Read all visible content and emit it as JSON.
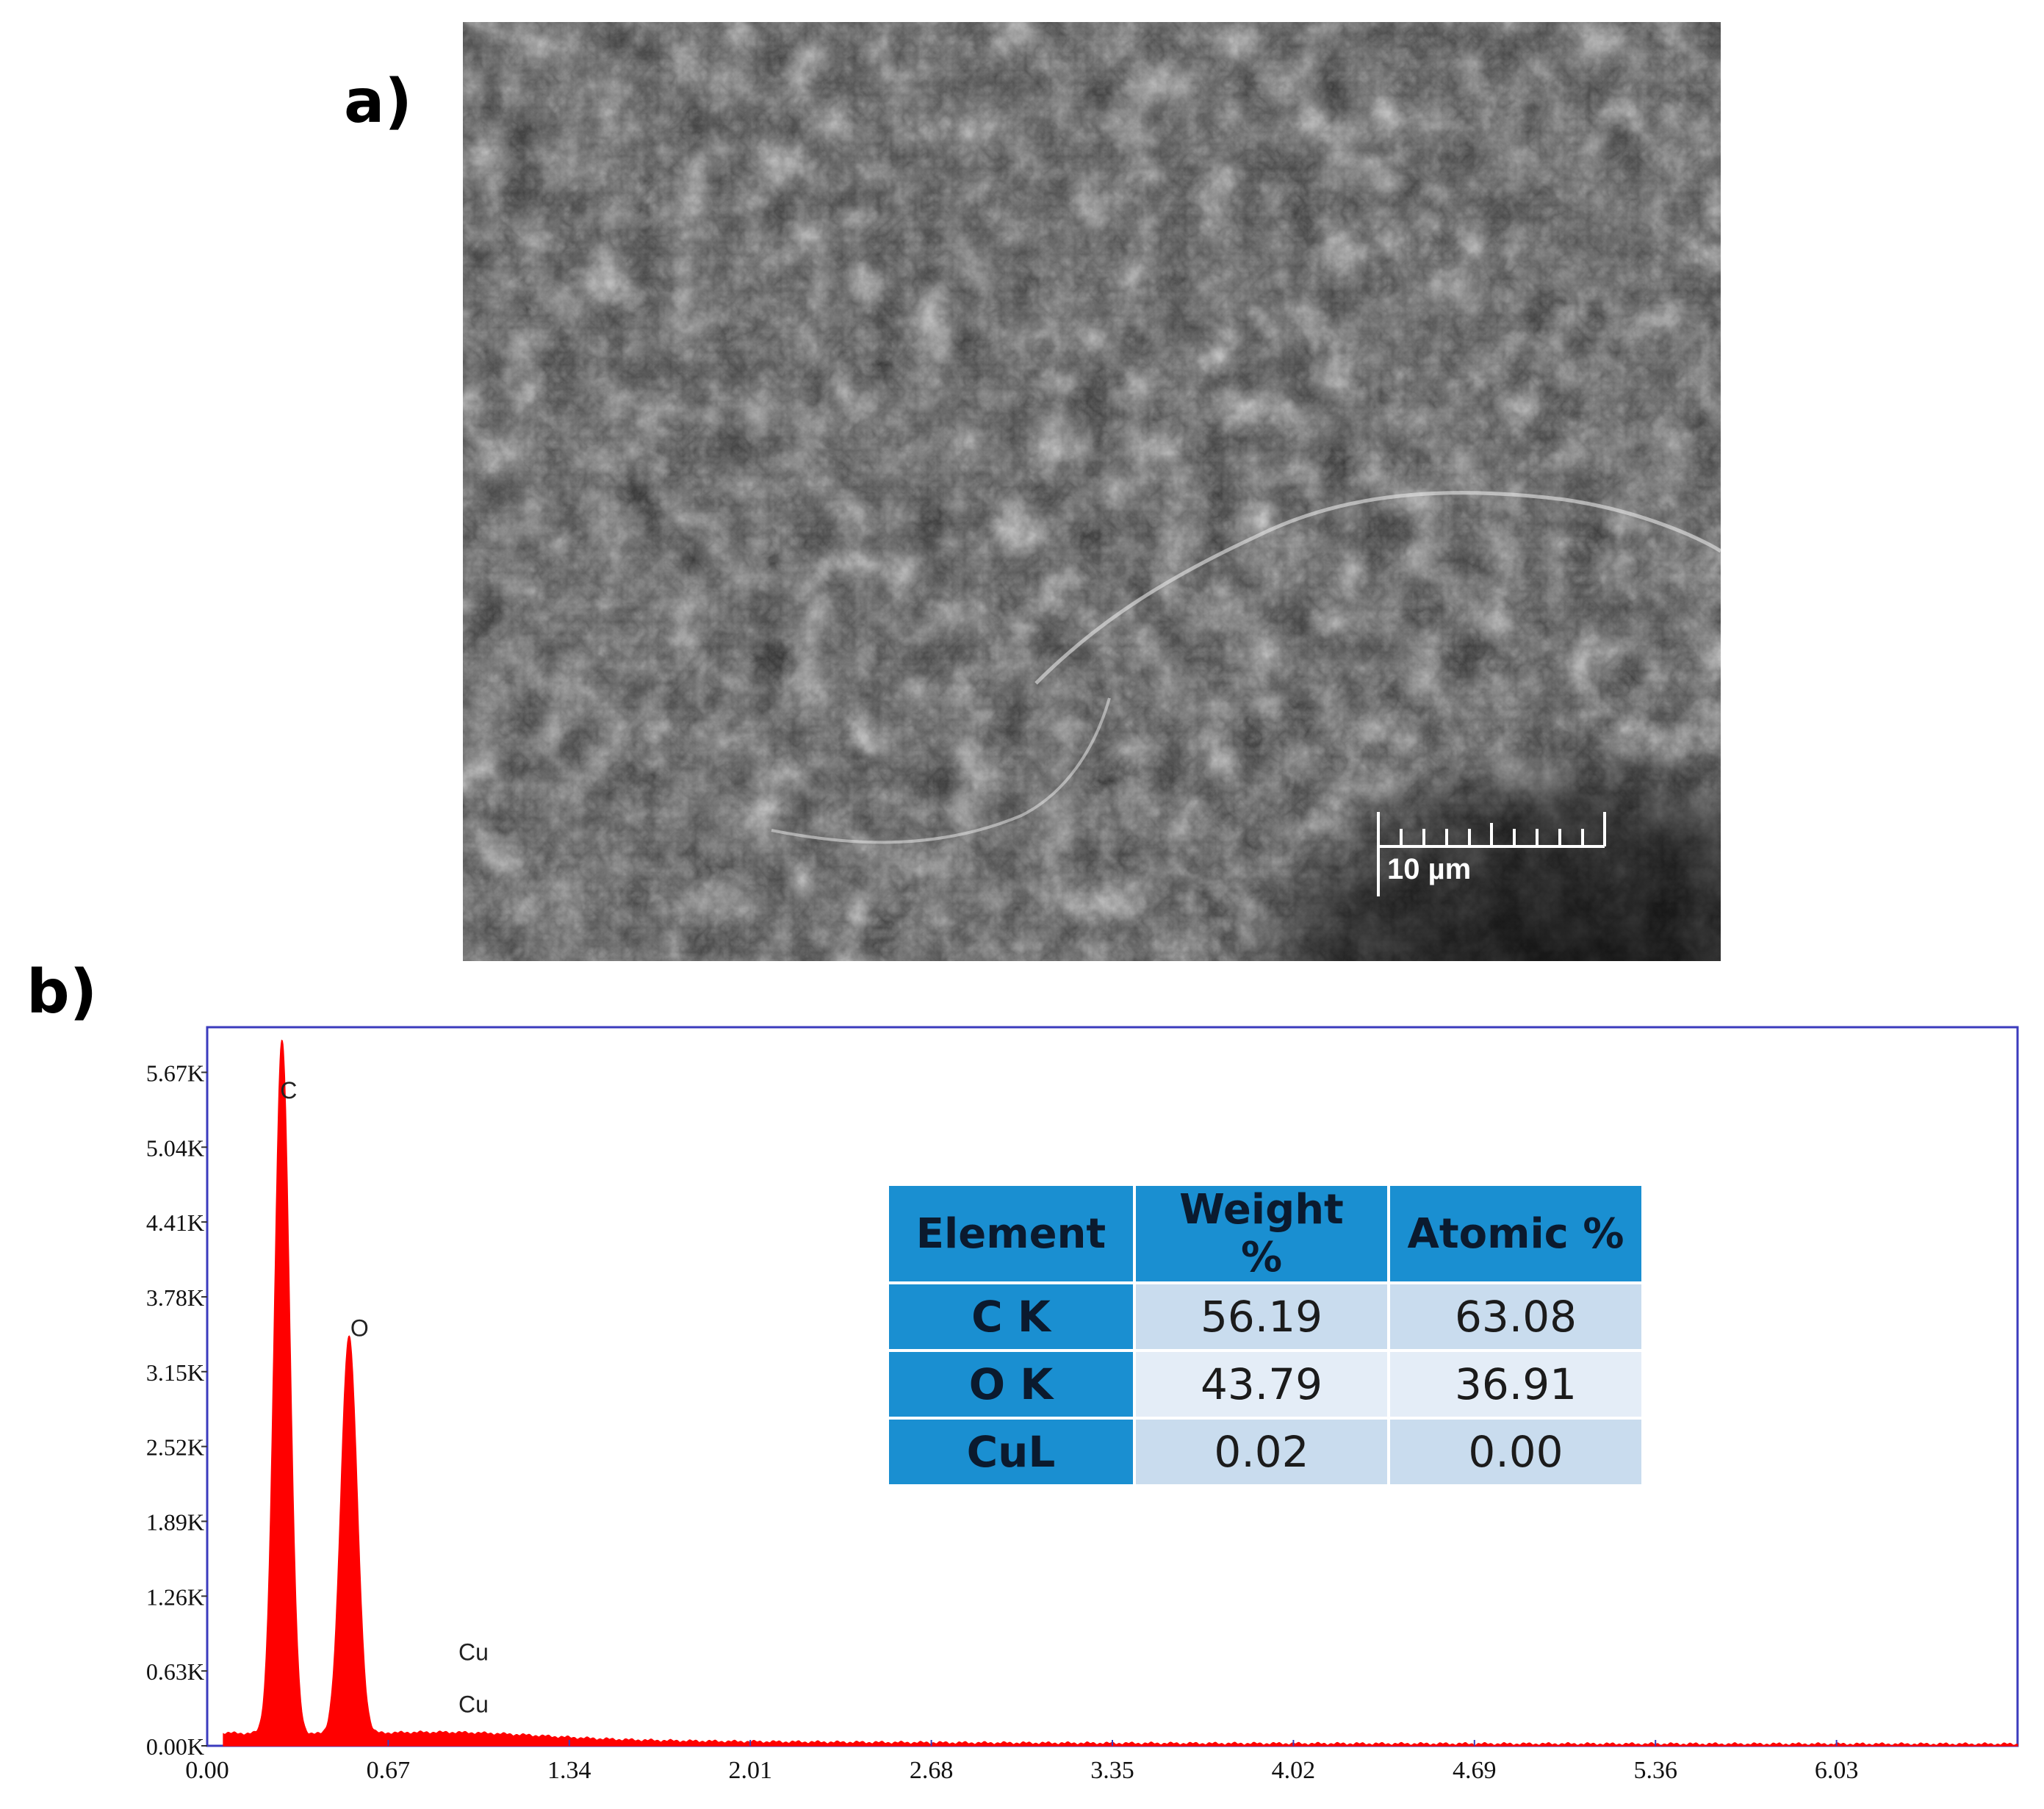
{
  "figure": {
    "panel_a_label": "a)",
    "panel_b_label": "b)",
    "scale_bar": "10 µm"
  },
  "table": {
    "headers": [
      "Element",
      "Weight %",
      "Atomic %"
    ],
    "rows": [
      [
        "C K",
        "56.19",
        "63.08"
      ],
      [
        "O K",
        "43.79",
        "36.91"
      ],
      [
        "CuL",
        "0.02",
        "0.00"
      ]
    ]
  },
  "chart_data": {
    "type": "area",
    "title": "",
    "xlabel": "",
    "ylabel": "",
    "xlim": [
      0.0,
      6.7
    ],
    "ylim": [
      0.0,
      6.05
    ],
    "x_ticks": [
      "0.00",
      "0.67",
      "1.34",
      "2.01",
      "2.68",
      "3.35",
      "4.02",
      "4.69",
      "5.36",
      "6.03"
    ],
    "y_ticks": [
      "0.00K",
      "0.63K",
      "1.26K",
      "1.89K",
      "2.52K",
      "3.15K",
      "3.78K",
      "4.41K",
      "5.04K",
      "5.67K"
    ],
    "y_unit": "K counts",
    "peaks": [
      {
        "label": "C",
        "x": 0.277,
        "height": 5.85
      },
      {
        "label": "O",
        "x": 0.525,
        "height": 3.35
      }
    ],
    "peak_labels": [
      {
        "label": "C",
        "x": 0.27,
        "y": 5.45
      },
      {
        "label": "O",
        "x": 0.53,
        "y": 3.45
      },
      {
        "label": "Cu",
        "x": 0.93,
        "y": 0.72
      },
      {
        "label": "Cu",
        "x": 0.93,
        "y": 0.28
      }
    ],
    "series": [
      {
        "values": [
          [
            0.0,
            0.05
          ],
          [
            0.1,
            0.07
          ],
          [
            0.2,
            0.12
          ],
          [
            0.277,
            5.85
          ],
          [
            0.33,
            0.1
          ],
          [
            0.43,
            0.09
          ],
          [
            0.525,
            3.35
          ],
          [
            0.6,
            0.09
          ],
          [
            0.9,
            0.11
          ],
          [
            1.34,
            0.07
          ],
          [
            2.01,
            0.05
          ],
          [
            3.35,
            0.03
          ],
          [
            4.69,
            0.02
          ],
          [
            6.0,
            0.01
          ]
        ]
      }
    ],
    "colors": {
      "spectrum": "#ff0000",
      "frame": "#3b3bbd",
      "table_header": "#1a8fd1"
    }
  }
}
